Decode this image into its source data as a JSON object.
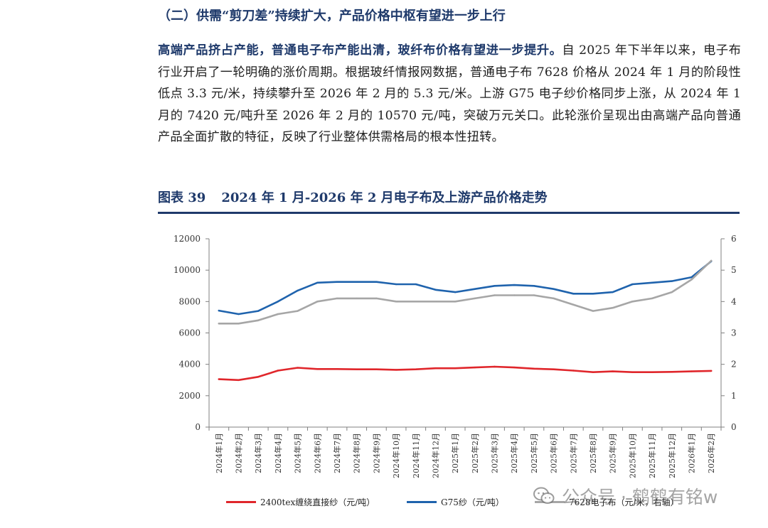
{
  "section_heading": "（二）供需“剪刀差”持续扩大，产品价格中枢有望进一步上行",
  "paragraph": {
    "lead": "高端产品挤占产能，普通电子布产能出清，玻纤布价格有望进一步提升。",
    "body": "自 2025 年下半年以来，电子布行业开启了一轮明确的涨价周期。根据玻纤情报网数据，普通电子布 7628 价格从 2024 年 1 月的阶段性低点 3.3 元/米，持续攀升至 2026 年 2 月的 5.3 元/米。上游 G75 电子纱价格同步上涨，从 2024 年 1 月的 7420 元/吨升至 2026 年 2 月的 10570 元/吨，突破万元关口。此轮涨价呈现出由高端产品向普通产品全面扩散的特征，反映了行业整体供需格局的根本性扭转。"
  },
  "figure": {
    "number": "图表 39",
    "title": "2024 年 1 月-2026 年 2 月电子布及上游产品价格走势"
  },
  "chart_data": {
    "type": "line",
    "title": "",
    "xlabel": "",
    "ylabel": "",
    "categories": [
      "2024年1月",
      "2024年2月",
      "2024年3月",
      "2024年4月",
      "2024年5月",
      "2024年6月",
      "2024年7月",
      "2024年8月",
      "2024年9月",
      "2024年10月",
      "2024年11月",
      "2024年12月",
      "2025年1月",
      "2025年2月",
      "2025年3月",
      "2025年4月",
      "2025年5月",
      "2025年6月",
      "2025年7月",
      "2025年8月",
      "2025年9月",
      "2025年10月",
      "2025年11月",
      "2025年12月",
      "2026年1月",
      "2026年2月"
    ],
    "left_axis": {
      "ylim": [
        0,
        12000
      ],
      "ticks": [
        0,
        2000,
        4000,
        6000,
        8000,
        10000,
        12000
      ]
    },
    "right_axis": {
      "ylim": [
        0,
        6
      ],
      "ticks": [
        0,
        1,
        2,
        3,
        4,
        5,
        6
      ]
    },
    "grid": false,
    "legend_position": "bottom",
    "series": [
      {
        "name": "2400tex缠绕直接纱（元/吨）",
        "axis": "left",
        "color": "#e0262b",
        "values": [
          3050,
          3000,
          3200,
          3600,
          3780,
          3700,
          3700,
          3680,
          3680,
          3650,
          3680,
          3750,
          3750,
          3800,
          3850,
          3800,
          3720,
          3680,
          3600,
          3500,
          3550,
          3500,
          3500,
          3520,
          3550,
          3580
        ]
      },
      {
        "name": "G75纱（元/吨）",
        "axis": "left",
        "color": "#1f63ad",
        "values": [
          7420,
          7200,
          7400,
          8000,
          8700,
          9200,
          9250,
          9250,
          9250,
          9100,
          9100,
          8750,
          8600,
          8800,
          9000,
          9050,
          9000,
          8800,
          8500,
          8500,
          8600,
          9100,
          9200,
          9300,
          9550,
          10570
        ]
      },
      {
        "name": "7628电子布（元/米，右轴）",
        "axis": "right",
        "color": "#a6a6a6",
        "values": [
          3.3,
          3.3,
          3.4,
          3.6,
          3.7,
          4.0,
          4.1,
          4.1,
          4.1,
          4.0,
          4.0,
          4.0,
          4.0,
          4.1,
          4.2,
          4.2,
          4.2,
          4.1,
          3.9,
          3.7,
          3.8,
          4.0,
          4.1,
          4.3,
          4.7,
          5.3
        ]
      }
    ]
  },
  "watermark": "公众号 · 鹤鹤有铭w"
}
